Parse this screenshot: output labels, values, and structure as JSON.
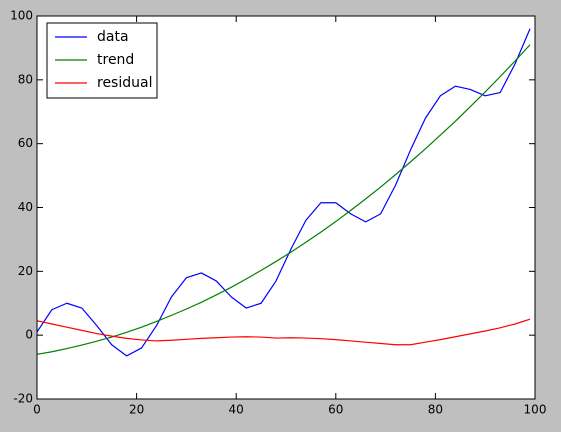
{
  "chart_data": {
    "type": "line",
    "x": [
      0,
      3,
      6,
      9,
      12,
      15,
      18,
      21,
      24,
      27,
      30,
      33,
      36,
      39,
      42,
      45,
      48,
      51,
      54,
      57,
      60,
      63,
      66,
      69,
      72,
      75,
      78,
      81,
      84,
      87,
      90,
      93,
      96,
      99
    ],
    "series": [
      {
        "name": "data",
        "color": "#0000ff",
        "values": [
          1,
          8,
          10,
          8.5,
          3,
          -3,
          -6.5,
          -4,
          3,
          12,
          18,
          19.5,
          17,
          12,
          8.5,
          10,
          17,
          27,
          36,
          41.5,
          41.5,
          38,
          35.5,
          38,
          47,
          58,
          68,
          75,
          78,
          77,
          75,
          76,
          85,
          96
        ]
      },
      {
        "name": "trend",
        "color": "#008000",
        "values": [
          -6,
          -5.2,
          -4.2,
          -3.1,
          -1.9,
          -0.6,
          0.9,
          2.5,
          4.3,
          6.2,
          8.2,
          10.3,
          12.6,
          15,
          17.6,
          20.3,
          23.1,
          26,
          29.1,
          32.3,
          35.6,
          39.1,
          42.7,
          46.4,
          50.3,
          54.3,
          58.4,
          62.7,
          67,
          71.6,
          76.2,
          81,
          85.9,
          91
        ]
      },
      {
        "name": "residual",
        "color": "#ff0000",
        "values": [
          4.5,
          3.5,
          2.5,
          1.5,
          0.5,
          -0.3,
          -1,
          -1.5,
          -1.8,
          -1.6,
          -1.3,
          -1,
          -0.8,
          -0.6,
          -0.5,
          -0.6,
          -0.9,
          -0.8,
          -0.9,
          -1.1,
          -1.4,
          -1.8,
          -2.2,
          -2.6,
          -3,
          -3,
          -2.2,
          -1.4,
          -0.5,
          0.4,
          1.3,
          2.3,
          3.5,
          5
        ]
      }
    ],
    "xlim": [
      0,
      100
    ],
    "xticks": [
      0,
      20,
      40,
      60,
      80,
      100
    ],
    "ylim": [
      -20,
      100
    ],
    "yticks": [
      -20,
      0,
      20,
      40,
      60,
      80,
      100
    ],
    "legend": "upper left"
  }
}
